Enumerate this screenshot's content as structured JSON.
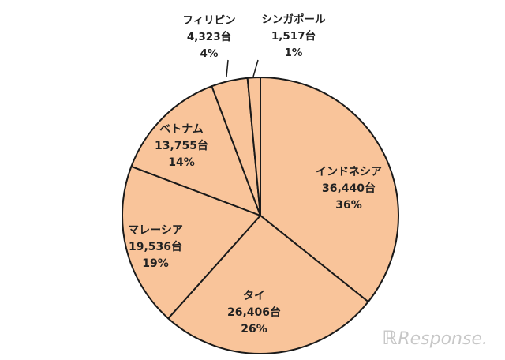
{
  "chart_data": {
    "type": "pie",
    "slices": [
      {
        "name": "インドネシア",
        "value": 36440,
        "value_label": "36,440台",
        "pct_label": "36%"
      },
      {
        "name": "タイ",
        "value": 26406,
        "value_label": "26,406台",
        "pct_label": "26%"
      },
      {
        "name": "マレーシア",
        "value": 19536,
        "value_label": "19,536台",
        "pct_label": "19%"
      },
      {
        "name": "ベトナム",
        "value": 13755,
        "value_label": "13,755台",
        "pct_label": "14%"
      },
      {
        "name": "フィリピン",
        "value": 4323,
        "value_label": "4,323台",
        "pct_label": "4%"
      },
      {
        "name": "シンガポール",
        "value": 1517,
        "value_label": "1,517台",
        "pct_label": "1%"
      }
    ],
    "start_angle_deg": 0,
    "direction": "clockwise",
    "colors": {
      "fill": "#f9c49a",
      "stroke": "#1a1a1a"
    }
  },
  "watermark": "Response."
}
